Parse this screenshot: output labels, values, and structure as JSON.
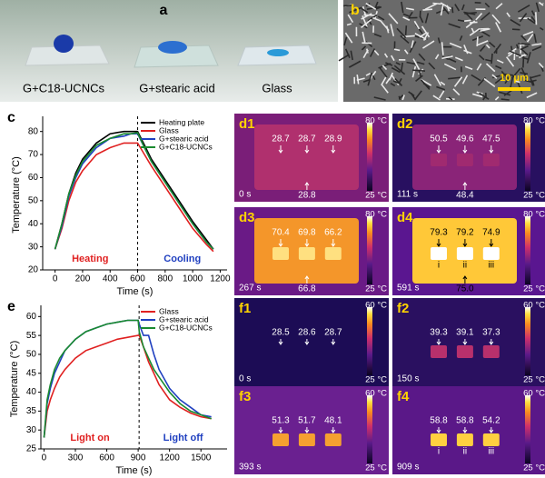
{
  "panels": {
    "a": {
      "label": "a",
      "samples": [
        "G+C18-UCNCs",
        "G+stearic acid",
        "Glass"
      ]
    },
    "b": {
      "label": "b",
      "scale_bar": "10 μm"
    }
  },
  "thermal": [
    {
      "label": "d1",
      "time": "0 s",
      "scale_max": "80 °C",
      "scale_min": "25 °C",
      "temps": [
        "28.7",
        "28.7",
        "28.9"
      ],
      "bottom_temp": "28.8"
    },
    {
      "label": "d2",
      "time": "111 s",
      "scale_max": "80 °C",
      "scale_min": "25 °C",
      "temps": [
        "50.5",
        "49.6",
        "47.5"
      ],
      "bottom_temp": "48.4"
    },
    {
      "label": "d3",
      "time": "267 s",
      "scale_max": "80 °C",
      "scale_min": "25 °C",
      "temps": [
        "70.4",
        "69.8",
        "66.2"
      ],
      "bottom_temp": "66.8"
    },
    {
      "label": "d4",
      "time": "591 s",
      "scale_max": "80 °C",
      "scale_min": "25 °C",
      "temps": [
        "79.3",
        "79.2",
        "74.9"
      ],
      "bottom_temp": "75.0",
      "markers": [
        "i",
        "ii",
        "iii"
      ]
    },
    {
      "label": "f1",
      "time": "0 s",
      "scale_max": "60 °C",
      "scale_min": "25 °C",
      "temps": [
        "28.5",
        "28.6",
        "28.7"
      ]
    },
    {
      "label": "f2",
      "time": "150 s",
      "scale_max": "60 °C",
      "scale_min": "25 °C",
      "temps": [
        "39.3",
        "39.1",
        "37.3"
      ]
    },
    {
      "label": "f3",
      "time": "393 s",
      "scale_max": "60 °C",
      "scale_min": "25 °C",
      "temps": [
        "51.3",
        "51.7",
        "48.1"
      ]
    },
    {
      "label": "f4",
      "time": "909 s",
      "scale_max": "60 °C",
      "scale_min": "25 °C",
      "temps": [
        "58.8",
        "58.8",
        "54.2"
      ],
      "markers": [
        "i",
        "ii",
        "iii"
      ]
    }
  ],
  "chart_data": [
    {
      "type": "line",
      "panel_label": "c",
      "xlabel": "Time (s)",
      "ylabel": "Temperature (°C)",
      "xlim": [
        -90,
        1250
      ],
      "ylim": [
        20,
        85
      ],
      "xticks": [
        0,
        200,
        400,
        600,
        800,
        1000,
        1200
      ],
      "yticks": [
        20,
        30,
        40,
        50,
        60,
        70,
        80
      ],
      "vline": 600,
      "annotations": [
        {
          "text": "Heating",
          "color": "#e02020"
        },
        {
          "text": "Cooling",
          "color": "#2040c0"
        }
      ],
      "x": [
        0,
        50,
        100,
        150,
        200,
        300,
        400,
        500,
        550,
        600,
        650,
        700,
        800,
        900,
        1000,
        1100,
        1150
      ],
      "series": [
        {
          "name": "Heating plate",
          "color": "#000000",
          "values": [
            29,
            40,
            53,
            62,
            68,
            75,
            79,
            80,
            80,
            80,
            74,
            68,
            59,
            50,
            41,
            33,
            29
          ]
        },
        {
          "name": "Glass",
          "color": "#e02020",
          "values": [
            29,
            38,
            50,
            58,
            63,
            70,
            73,
            75,
            75,
            75,
            70,
            65,
            56,
            47,
            38,
            31,
            28
          ]
        },
        {
          "name": "G+stearic acid",
          "color": "#2040c0",
          "values": [
            29,
            39,
            52,
            60,
            66,
            73,
            77,
            78,
            79,
            79,
            73,
            67,
            58,
            49,
            40,
            32,
            29
          ]
        },
        {
          "name": "G+C18-UCNCs",
          "color": "#1a8a30",
          "values": [
            29,
            40,
            53,
            61,
            67,
            74,
            77,
            79,
            79,
            79.5,
            73,
            67,
            58,
            49,
            40,
            32,
            29
          ]
        }
      ]
    },
    {
      "type": "line",
      "panel_label": "e",
      "xlabel": "Time (s)",
      "ylabel": "Temperature (°C)",
      "xlim": [
        -30,
        1750
      ],
      "ylim": [
        25,
        62
      ],
      "xticks": [
        0,
        300,
        600,
        900,
        1200,
        1500
      ],
      "yticks": [
        25,
        30,
        35,
        40,
        45,
        50,
        55,
        60
      ],
      "vline": 909,
      "annotations": [
        {
          "text": "Light on",
          "color": "#e02020"
        },
        {
          "text": "Light off",
          "color": "#2040c0"
        }
      ],
      "x": [
        0,
        30,
        60,
        100,
        150,
        200,
        300,
        400,
        500,
        600,
        700,
        800,
        900,
        910,
        950,
        1000,
        1050,
        1100,
        1200,
        1300,
        1400,
        1500,
        1600
      ],
      "series": [
        {
          "name": "Glass",
          "color": "#e02020",
          "values": [
            28,
            35,
            38,
            41,
            44,
            46,
            49,
            51,
            52,
            53,
            54,
            54.5,
            55,
            55,
            52,
            48,
            45,
            42,
            38,
            36,
            34.5,
            33.5,
            33
          ]
        },
        {
          "name": "G+stearic acid",
          "color": "#2040c0",
          "values": [
            28,
            37,
            41,
            45,
            48,
            51,
            54,
            56,
            57,
            58,
            58.5,
            59,
            59,
            58,
            55,
            55,
            50,
            46,
            41,
            38,
            36,
            34,
            33.5
          ]
        },
        {
          "name": "G+C18-UCNCs",
          "color": "#1a8a30",
          "values": [
            28,
            38,
            42,
            46,
            49,
            51,
            54,
            56,
            57,
            58,
            58.5,
            59,
            59,
            56,
            52,
            49,
            46,
            44,
            40,
            37,
            35,
            34,
            33
          ]
        }
      ]
    }
  ]
}
